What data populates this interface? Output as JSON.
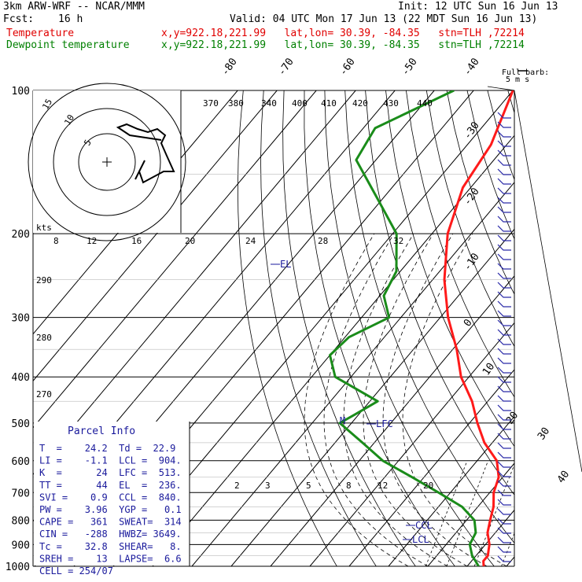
{
  "header": {
    "model": "3km ARW-WRF -- NCAR/MMM",
    "init": "Init: 12 UTC Sun 16 Jun 13",
    "fcst_label": "Fcst:",
    "fcst_value": "16 h",
    "valid": "Valid: 04 UTC Mon 17 Jun 13 (22 MDT Sun 16 Jun 13)",
    "temp_label": "Temperature",
    "temp_info": "x,y=922.18,221.99   lat,lon= 30.39, -84.35   stn=TLH ,72214",
    "dew_label": "Dewpoint temperature",
    "dew_info": "x,y=922.18,221.99   lat,lon= 30.39, -84.35   stn=TLH ,72214"
  },
  "colors": {
    "temperature": "#ff1a1a",
    "dewpoint": "#1a8c1a",
    "parcel_text": "#1a1a9c",
    "label_red": "#e00000",
    "label_green": "#008000"
  },
  "chart_data": {
    "type": "line",
    "skewt": true,
    "y_axis": "pressure (hPa), log scale",
    "pressure_levels": [
      100,
      200,
      300,
      400,
      500,
      600,
      700,
      800,
      900,
      1000
    ],
    "temperature_isotherm_labels": [
      "-80",
      "-70",
      "-60",
      "-50",
      "-40",
      "-30",
      "-20",
      "-10",
      "0",
      "10",
      "20",
      "30",
      "40"
    ],
    "theta_e_labels": [
      "370",
      "380",
      "340",
      "400",
      "410",
      "420",
      "430",
      "440"
    ],
    "mixing_ratio_top_labels": [
      "8",
      "12",
      "16",
      "20",
      "24",
      "28",
      "32"
    ],
    "mixing_ratio_bottom_labels": [
      "2",
      "3",
      "5",
      "8",
      "12",
      "20"
    ],
    "theta_labels": [
      "290",
      "280",
      "270"
    ],
    "annotations": [
      "EL",
      "LFC",
      "CCL",
      "LCL",
      "M"
    ],
    "series": [
      {
        "name": "Temperature",
        "points": [
          [
            100,
            -70
          ],
          [
            130,
            -64
          ],
          [
            160,
            -62
          ],
          [
            200,
            -56
          ],
          [
            250,
            -47
          ],
          [
            300,
            -38
          ],
          [
            350,
            -29
          ],
          [
            400,
            -22
          ],
          [
            450,
            -14
          ],
          [
            500,
            -8
          ],
          [
            550,
            -2
          ],
          [
            600,
            5
          ],
          [
            650,
            9
          ],
          [
            700,
            11
          ],
          [
            750,
            14
          ],
          [
            800,
            16
          ],
          [
            850,
            18
          ],
          [
            900,
            21
          ],
          [
            925,
            22
          ],
          [
            950,
            23
          ],
          [
            975,
            23
          ],
          [
            1000,
            24.2
          ]
        ]
      },
      {
        "name": "Dewpoint temperature",
        "points": [
          [
            100,
            -85
          ],
          [
            120,
            -97
          ],
          [
            140,
            -95
          ],
          [
            165,
            -83
          ],
          [
            200,
            -69
          ],
          [
            240,
            -61
          ],
          [
            270,
            -59
          ],
          [
            300,
            -53
          ],
          [
            330,
            -59
          ],
          [
            360,
            -60
          ],
          [
            400,
            -54
          ],
          [
            450,
            -38
          ],
          [
            480,
            -41
          ],
          [
            500,
            -43
          ],
          [
            550,
            -33
          ],
          [
            600,
            -24
          ],
          [
            650,
            -13
          ],
          [
            700,
            -3
          ],
          [
            750,
            6
          ],
          [
            800,
            12
          ],
          [
            850,
            15
          ],
          [
            900,
            16
          ],
          [
            950,
            19
          ],
          [
            975,
            21
          ],
          [
            1000,
            22.9
          ]
        ]
      }
    ]
  },
  "hodograph": {
    "axis_label": "kts",
    "ring_labels": [
      "15",
      "10",
      "5"
    ]
  },
  "wind_barbs": {
    "legend_title": "Full barb:",
    "legend_value": "5 m s"
  },
  "parcel": {
    "title": "Parcel Info",
    "rows": [
      "T  =    24.2  Td =  22.9",
      "LI =    -1.1  LCL =  904.",
      "K  =      24  LFC =  513.",
      "TT =      44  EL  =  236.",
      "SVI =    0.9  CCL =  840.",
      "PW =    3.96  YGP =   0.1",
      "CAPE =   361  SWEAT=  314",
      "CIN =   -288  HWBZ= 3649.",
      "Tc =    32.8  SHEAR=   8.",
      "SREH =    13  LAPSE=  6.6",
      "CELL = 254/07"
    ]
  }
}
